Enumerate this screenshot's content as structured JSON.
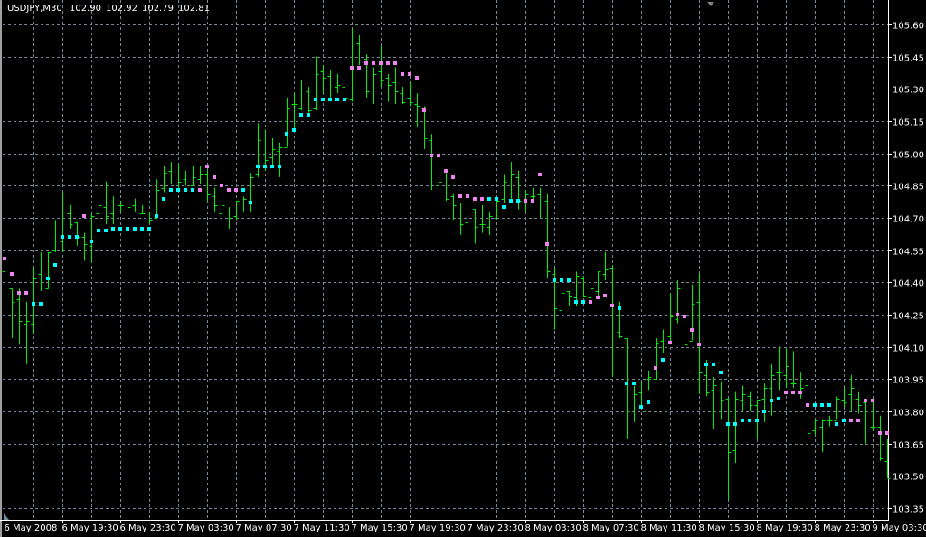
{
  "header": {
    "symbol": "USDJPY,M30",
    "open": "102.90",
    "high": "102.92",
    "low": "102.79",
    "close": "102.81"
  },
  "colors": {
    "background": "#000000",
    "bars": "#00ee00",
    "grid": "#778899",
    "axis": "#ffffff",
    "dot_c": "#00ffff",
    "dot_p": "#ee82ee"
  },
  "chart_data": {
    "type": "ohlc",
    "title": "USDJPY,M30",
    "timeframe": "M30",
    "ylim": [
      103.35,
      105.6
    ],
    "grid": true,
    "y_ticks": [
      "105.60",
      "105.45",
      "105.30",
      "105.15",
      "105.00",
      "104.85",
      "104.70",
      "104.55",
      "104.40",
      "104.25",
      "104.10",
      "103.95",
      "103.80",
      "103.65",
      "103.50",
      "103.35"
    ],
    "x_ticks": [
      {
        "label": "6 May 2008",
        "bar": 0
      },
      {
        "label": "6 May 19:30",
        "bar": 8
      },
      {
        "label": "6 May 23:30",
        "bar": 16
      },
      {
        "label": "7 May 03:30",
        "bar": 24
      },
      {
        "label": "7 May 07:30",
        "bar": 32
      },
      {
        "label": "7 May 11:30",
        "bar": 40
      },
      {
        "label": "7 May 15:30",
        "bar": 48
      },
      {
        "label": "7 May 19:30",
        "bar": 56
      },
      {
        "label": "7 May 23:30",
        "bar": 64
      },
      {
        "label": "8 May 03:30",
        "bar": 72
      },
      {
        "label": "8 May 07:30",
        "bar": 80
      },
      {
        "label": "8 May 11:30",
        "bar": 88
      },
      {
        "label": "8 May 15:30",
        "bar": 96
      },
      {
        "label": "8 May 19:30",
        "bar": 104
      },
      {
        "label": "8 May 23:30",
        "bar": 112
      },
      {
        "label": "9 May 03:30",
        "bar": 120
      }
    ],
    "ohlc": [
      [
        104.45,
        104.59,
        104.37,
        104.38
      ],
      [
        104.37,
        104.37,
        104.14,
        104.31
      ],
      [
        104.32,
        104.37,
        104.11,
        104.22
      ],
      [
        104.21,
        104.31,
        104.02,
        104.22
      ],
      [
        104.21,
        104.47,
        104.16,
        104.42
      ],
      [
        104.44,
        104.54,
        104.36,
        104.4
      ],
      [
        104.37,
        104.54,
        104.37,
        104.54
      ],
      [
        104.55,
        104.69,
        104.54,
        104.6
      ],
      [
        104.59,
        104.82,
        104.54,
        104.73
      ],
      [
        104.72,
        104.76,
        104.65,
        104.67
      ],
      [
        104.68,
        104.68,
        104.57,
        104.61
      ],
      [
        104.61,
        104.63,
        104.5,
        104.58
      ],
      [
        104.57,
        104.72,
        104.49,
        104.71
      ],
      [
        104.72,
        104.77,
        104.68,
        104.76
      ],
      [
        104.75,
        104.87,
        104.67,
        104.71
      ],
      [
        104.72,
        104.8,
        104.67,
        104.77
      ],
      [
        104.76,
        104.78,
        104.73,
        104.76
      ],
      [
        104.77,
        104.78,
        104.73,
        104.75
      ],
      [
        104.76,
        104.79,
        104.73,
        104.73
      ],
      [
        104.72,
        104.76,
        104.72,
        104.72
      ],
      [
        104.73,
        104.73,
        104.67,
        104.69
      ],
      [
        104.7,
        104.88,
        104.7,
        104.83
      ],
      [
        104.84,
        104.94,
        104.82,
        104.91
      ],
      [
        104.92,
        104.96,
        104.86,
        104.95
      ],
      [
        104.95,
        104.95,
        104.84,
        104.87
      ],
      [
        104.88,
        104.92,
        104.85,
        104.86
      ],
      [
        104.85,
        104.94,
        104.85,
        104.89
      ],
      [
        104.88,
        104.94,
        104.86,
        104.9
      ],
      [
        104.9,
        104.92,
        104.78,
        104.81
      ],
      [
        104.8,
        104.84,
        104.73,
        104.76
      ],
      [
        104.72,
        104.8,
        104.65,
        104.76
      ],
      [
        104.73,
        104.75,
        104.65,
        104.7
      ],
      [
        104.71,
        104.78,
        104.69,
        104.78
      ],
      [
        104.77,
        104.8,
        104.73,
        104.79
      ],
      [
        104.78,
        104.91,
        104.73,
        104.89
      ],
      [
        104.9,
        105.14,
        104.89,
        105.06
      ],
      [
        105.08,
        105.11,
        104.92,
        104.97
      ],
      [
        104.98,
        105.07,
        104.94,
        105.02
      ],
      [
        105.01,
        105.05,
        104.89,
        105.03
      ],
      [
        105.03,
        105.26,
        105.03,
        105.21
      ],
      [
        105.23,
        105.28,
        105.11,
        105.23
      ],
      [
        105.21,
        105.34,
        105.2,
        105.3
      ],
      [
        105.29,
        105.31,
        105.19,
        105.2
      ],
      [
        105.21,
        105.45,
        105.2,
        105.37
      ],
      [
        105.38,
        105.41,
        105.28,
        105.35
      ],
      [
        105.36,
        105.39,
        105.26,
        105.3
      ],
      [
        105.31,
        105.37,
        105.28,
        105.32
      ],
      [
        105.31,
        105.35,
        105.2,
        105.26
      ],
      [
        105.25,
        105.58,
        105.24,
        105.52
      ],
      [
        105.51,
        105.55,
        105.41,
        105.43
      ],
      [
        105.44,
        105.46,
        105.26,
        105.29
      ],
      [
        105.3,
        105.4,
        105.23,
        105.37
      ],
      [
        105.38,
        105.5,
        105.31,
        105.34
      ],
      [
        105.35,
        105.37,
        105.24,
        105.32
      ],
      [
        105.33,
        105.4,
        105.23,
        105.29
      ],
      [
        105.28,
        105.31,
        105.23,
        105.24
      ],
      [
        105.26,
        105.33,
        105.22,
        105.24
      ],
      [
        105.23,
        105.28,
        105.12,
        105.22
      ],
      [
        105.21,
        105.22,
        105.02,
        105.07
      ],
      [
        105.06,
        105.09,
        104.83,
        104.86
      ],
      [
        104.85,
        104.9,
        104.74,
        104.87
      ],
      [
        104.86,
        104.92,
        104.78,
        104.79
      ],
      [
        104.8,
        104.81,
        104.69,
        104.76
      ],
      [
        104.77,
        104.77,
        104.62,
        104.67
      ],
      [
        104.68,
        104.75,
        104.63,
        104.73
      ],
      [
        104.74,
        104.74,
        104.58,
        104.66
      ],
      [
        104.67,
        104.76,
        104.63,
        104.67
      ],
      [
        104.66,
        104.73,
        104.62,
        104.71
      ],
      [
        104.7,
        104.78,
        104.7,
        104.78
      ],
      [
        104.79,
        104.9,
        104.77,
        104.87
      ],
      [
        104.86,
        104.96,
        104.79,
        104.9
      ],
      [
        104.89,
        104.92,
        104.74,
        104.78
      ],
      [
        104.77,
        104.83,
        104.73,
        104.81
      ],
      [
        104.8,
        104.84,
        104.77,
        104.8
      ],
      [
        104.81,
        104.84,
        104.7,
        104.77
      ],
      [
        104.78,
        104.81,
        104.42,
        104.45
      ],
      [
        104.44,
        104.47,
        104.18,
        104.28
      ],
      [
        104.27,
        104.39,
        104.26,
        104.35
      ],
      [
        104.36,
        104.36,
        104.29,
        104.34
      ],
      [
        104.33,
        104.45,
        104.29,
        104.43
      ],
      [
        104.42,
        104.43,
        104.33,
        104.34
      ],
      [
        104.33,
        104.43,
        104.31,
        104.37
      ],
      [
        104.36,
        104.45,
        104.33,
        104.45
      ],
      [
        104.44,
        104.54,
        104.41,
        104.46
      ],
      [
        104.47,
        104.48,
        103.96,
        104.16
      ],
      [
        104.17,
        104.31,
        104.14,
        104.15
      ],
      [
        104.14,
        104.14,
        103.67,
        103.8
      ],
      [
        103.81,
        103.92,
        103.75,
        103.88
      ],
      [
        103.89,
        103.94,
        103.82,
        103.94
      ],
      [
        103.95,
        103.99,
        103.9,
        103.96
      ],
      [
        103.95,
        104.14,
        103.95,
        104.12
      ],
      [
        104.13,
        104.18,
        104.07,
        104.16
      ],
      [
        104.15,
        104.35,
        104.11,
        104.24
      ],
      [
        104.23,
        104.41,
        104.21,
        104.37
      ],
      [
        104.38,
        104.38,
        104.05,
        104.11
      ],
      [
        104.13,
        104.39,
        104.13,
        104.3
      ],
      [
        104.31,
        104.44,
        103.88,
        103.98
      ],
      [
        103.97,
        104.04,
        103.87,
        103.89
      ],
      [
        103.9,
        103.96,
        103.72,
        103.92
      ],
      [
        103.94,
        103.94,
        103.76,
        103.85
      ],
      [
        103.86,
        103.86,
        103.39,
        103.61
      ],
      [
        103.62,
        103.89,
        103.56,
        103.86
      ],
      [
        103.85,
        103.92,
        103.8,
        103.88
      ],
      [
        103.87,
        103.89,
        103.8,
        103.83
      ],
      [
        103.83,
        103.85,
        103.67,
        103.85
      ],
      [
        103.86,
        103.93,
        103.75,
        103.91
      ],
      [
        103.91,
        104.02,
        103.78,
        103.97
      ],
      [
        103.98,
        104.1,
        103.9,
        103.98
      ],
      [
        103.97,
        104.09,
        103.91,
        104.01
      ],
      [
        103.93,
        104.08,
        103.91,
        103.93
      ],
      [
        103.94,
        103.98,
        103.86,
        103.91
      ],
      [
        103.92,
        103.95,
        103.67,
        103.7
      ],
      [
        103.71,
        103.76,
        103.69,
        103.76
      ],
      [
        103.73,
        103.76,
        103.61,
        103.76
      ],
      [
        103.76,
        103.78,
        103.73,
        103.76
      ],
      [
        103.76,
        103.87,
        103.76,
        103.86
      ],
      [
        103.85,
        103.91,
        103.82,
        103.84
      ],
      [
        103.88,
        103.97,
        103.8,
        103.91
      ],
      [
        103.86,
        103.89,
        103.79,
        103.83
      ],
      [
        103.84,
        103.85,
        103.65,
        103.72
      ],
      [
        103.73,
        103.86,
        103.71,
        103.73
      ],
      [
        103.73,
        103.78,
        103.57,
        103.58
      ],
      [
        103.57,
        103.67,
        103.49,
        103.49
      ]
    ],
    "indicator": {
      "values": [
        104.51,
        104.44,
        104.35,
        104.35,
        104.3,
        104.3,
        104.42,
        104.48,
        104.61,
        104.61,
        104.61,
        104.71,
        104.59,
        104.64,
        104.64,
        104.65,
        104.65,
        104.65,
        104.65,
        104.65,
        104.65,
        104.71,
        104.79,
        104.83,
        104.83,
        104.83,
        104.83,
        104.83,
        104.94,
        104.89,
        104.85,
        104.83,
        104.83,
        104.83,
        104.77,
        104.94,
        104.94,
        104.94,
        104.94,
        105.09,
        105.11,
        105.18,
        105.18,
        105.25,
        105.25,
        105.25,
        105.25,
        105.25,
        105.4,
        105.4,
        105.42,
        105.42,
        105.42,
        105.42,
        105.42,
        105.37,
        105.37,
        105.35,
        105.2,
        104.99,
        104.99,
        104.92,
        104.89,
        104.8,
        104.8,
        104.79,
        104.79,
        104.79,
        104.79,
        104.75,
        104.78,
        104.78,
        104.78,
        104.78,
        104.9,
        104.58,
        104.41,
        104.41,
        104.41,
        104.31,
        104.31,
        104.31,
        104.33,
        104.34,
        104.29,
        104.28,
        103.93,
        103.93,
        103.82,
        103.84,
        104.0,
        104.04,
        104.12,
        104.25,
        104.24,
        104.18,
        104.11,
        104.02,
        104.02,
        103.98,
        103.74,
        103.74,
        103.76,
        103.76,
        103.76,
        103.8,
        103.85,
        103.86,
        103.89,
        103.89,
        103.89,
        103.83,
        103.83,
        103.83,
        103.83,
        103.74,
        103.76,
        103.76,
        103.76,
        103.85,
        103.85,
        103.7,
        103.7
      ],
      "colors": "ppppccccccc pcccccccccccccccppppppcccccccccccccccpppppppppppppppppppccccc ppppcccccppppcccccpcpppppcccccccccccppppcccccpppp"
    }
  }
}
